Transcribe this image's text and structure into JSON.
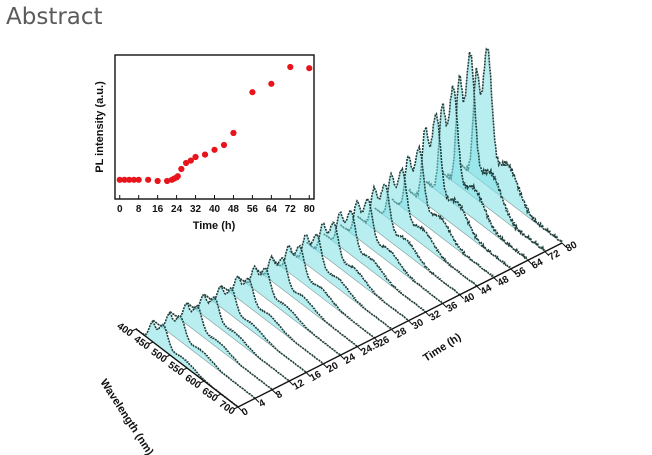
{
  "page": {
    "heading": "Abstract"
  },
  "chart_data": [
    {
      "type": "scatter",
      "title": "",
      "xlabel": "Time (h)",
      "ylabel": "PL intensity (a.u.)",
      "xlim": [
        -2,
        82
      ],
      "x_ticks": [
        "0",
        "8",
        "16",
        "24",
        "32",
        "40",
        "48",
        "56",
        "64",
        "72",
        "80"
      ],
      "y_ticks_shown": false,
      "marker_color": "#e8141b",
      "points": [
        {
          "x": 0,
          "y": 0.06
        },
        {
          "x": 2,
          "y": 0.06
        },
        {
          "x": 4,
          "y": 0.06
        },
        {
          "x": 6,
          "y": 0.06
        },
        {
          "x": 8,
          "y": 0.06
        },
        {
          "x": 12,
          "y": 0.06
        },
        {
          "x": 16,
          "y": 0.05
        },
        {
          "x": 20,
          "y": 0.05
        },
        {
          "x": 22,
          "y": 0.06
        },
        {
          "x": 23,
          "y": 0.07
        },
        {
          "x": 24,
          "y": 0.08
        },
        {
          "x": 24.5,
          "y": 0.09
        },
        {
          "x": 26,
          "y": 0.15
        },
        {
          "x": 28,
          "y": 0.2
        },
        {
          "x": 30,
          "y": 0.22
        },
        {
          "x": 32,
          "y": 0.25
        },
        {
          "x": 36,
          "y": 0.27
        },
        {
          "x": 40,
          "y": 0.31
        },
        {
          "x": 44,
          "y": 0.35
        },
        {
          "x": 48,
          "y": 0.45
        },
        {
          "x": 56,
          "y": 0.79
        },
        {
          "x": 64,
          "y": 0.86
        },
        {
          "x": 72,
          "y": 1.0
        },
        {
          "x": 80,
          "y": 0.99
        }
      ]
    },
    {
      "type": "waterfall",
      "xlabel": "Wavelength (nm)",
      "zlabel": "Time (h)",
      "wavelength_ticks": [
        "400",
        "450",
        "500",
        "550",
        "600",
        "650",
        "700"
      ],
      "time_ticks": [
        "0",
        "4",
        "8",
        "12",
        "16",
        "20",
        "24",
        "24.5",
        "26",
        "28",
        "30",
        "32",
        "36",
        "40",
        "44",
        "48",
        "56",
        "64",
        "72",
        "80"
      ],
      "wavelength_range": [
        400,
        700
      ],
      "peak_wavelength": 480,
      "fill_color": "#7fe0e6",
      "line_color": "#1f3d3a",
      "relative_peak_heights": [
        0.16,
        0.16,
        0.17,
        0.17,
        0.17,
        0.18,
        0.19,
        0.2,
        0.22,
        0.24,
        0.26,
        0.28,
        0.3,
        0.34,
        0.38,
        0.46,
        0.62,
        0.74,
        0.9,
        0.88
      ]
    }
  ]
}
